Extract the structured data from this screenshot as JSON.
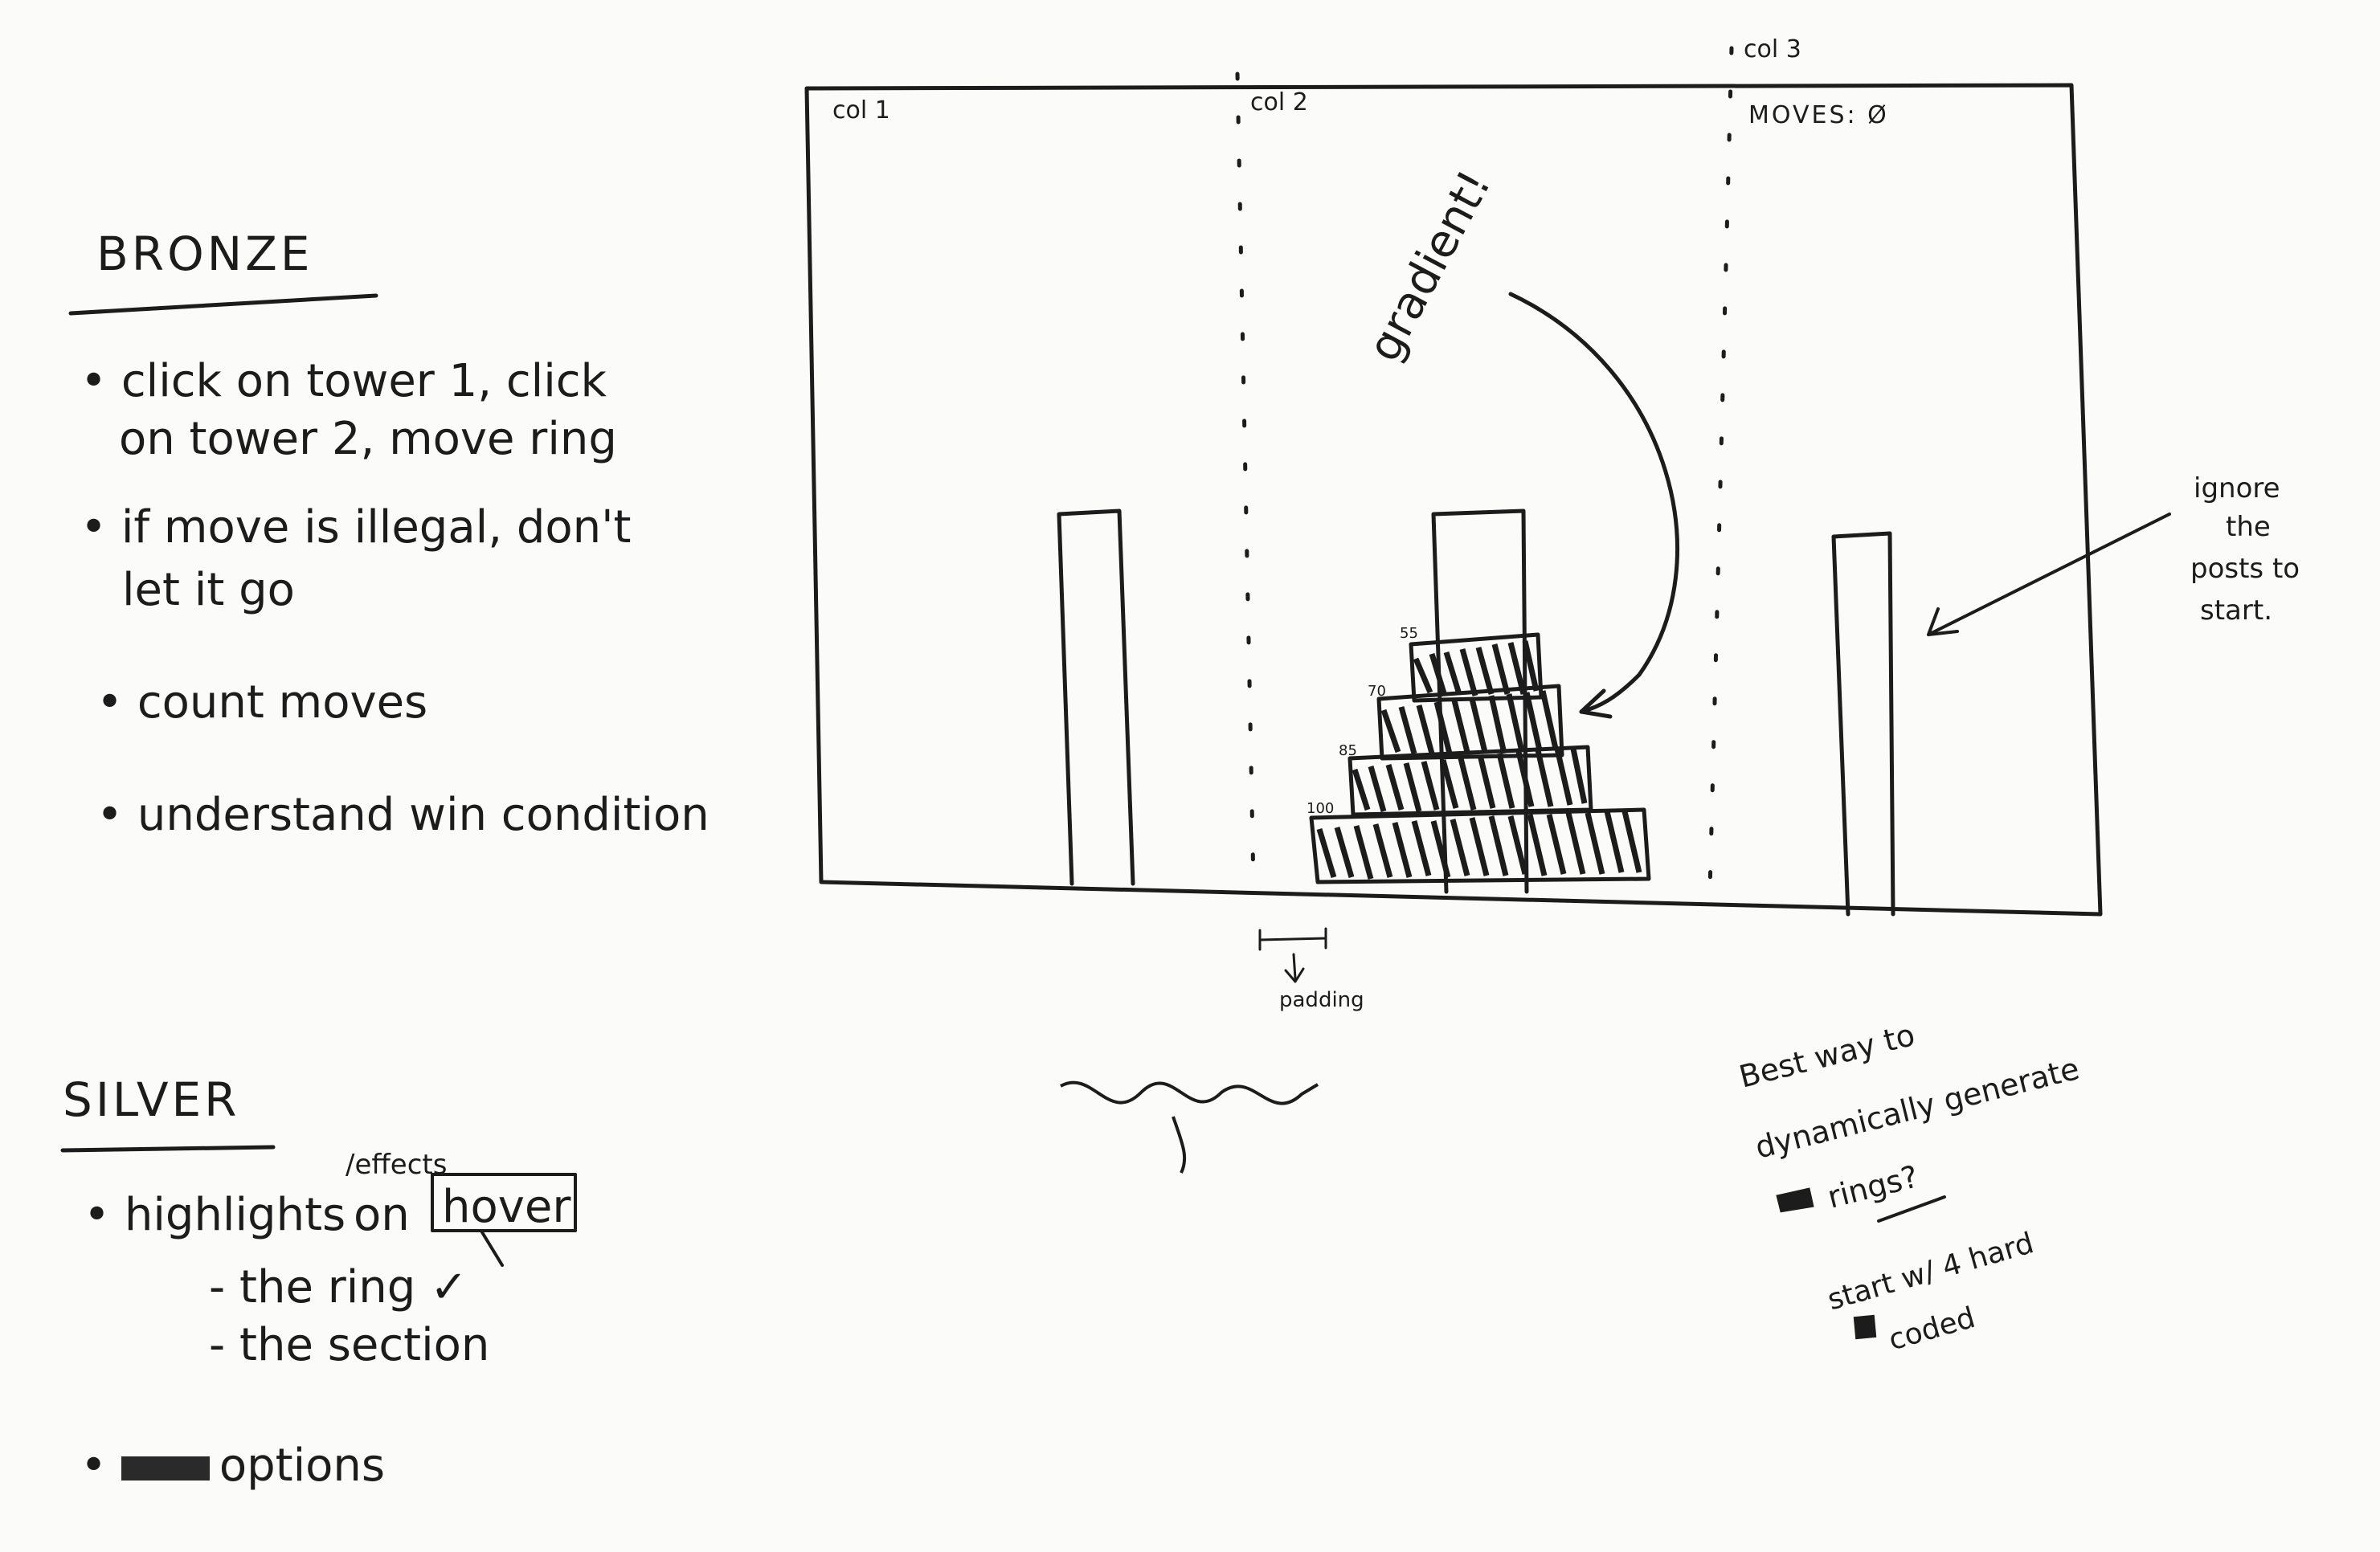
{
  "bronze": {
    "heading": "BRONZE",
    "items": [
      "click on tower 1, click",
      "on tower 2, move ring",
      "if move is illegal, don't",
      "let it go",
      "count moves",
      "understand win condition"
    ]
  },
  "silver": {
    "heading": "SILVER",
    "highlights_prefix": "highlights",
    "effects_note": "/effects",
    "on_word": "on",
    "hover_word": "hover",
    "sub_items": [
      "- the ring ✓",
      "- the section"
    ],
    "options_item": "options"
  },
  "board": {
    "col1": "col 1",
    "col2": "col 2",
    "col3": "col 3",
    "moves_label": "MOVES: Ø",
    "gradient_note": "gradient!",
    "padding_note": "padding",
    "ignore_note": [
      "ignore",
      "the",
      "posts to",
      "start."
    ],
    "ring_labels": [
      "55",
      "70",
      "85",
      "100"
    ]
  },
  "notes": {
    "dynamic": [
      "Best way to",
      "dynamically generate",
      "rings?"
    ],
    "start": [
      "start w/ 4 hard",
      "coded"
    ]
  }
}
